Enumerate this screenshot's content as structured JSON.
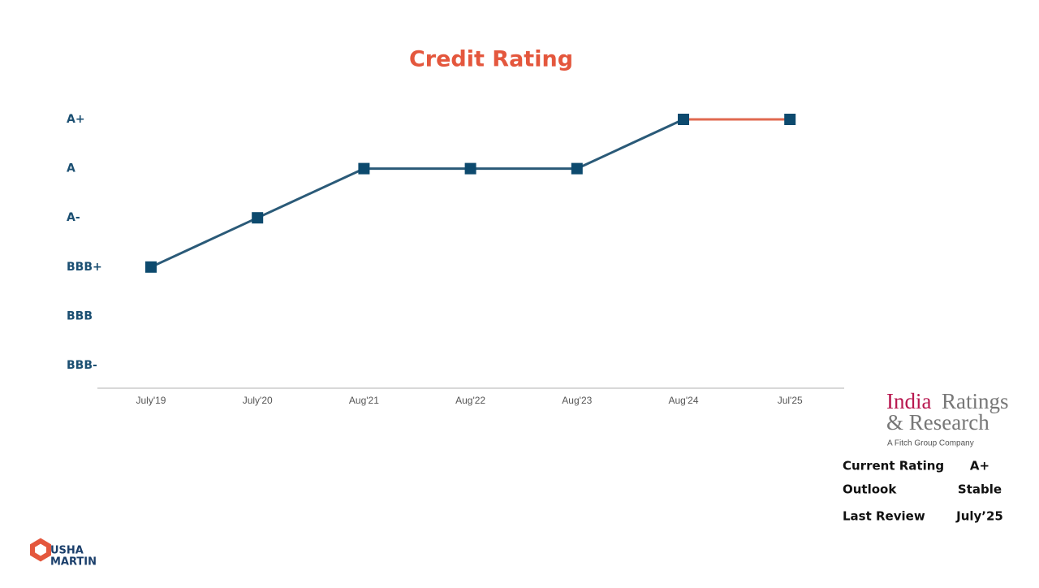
{
  "chart_data": {
    "type": "line",
    "title": "Credit Rating",
    "categories": [
      "July'19",
      "July'20",
      "Aug'21",
      "Aug'22",
      "Aug'23",
      "Aug'24",
      "Jul'25"
    ],
    "y_categories": [
      "BBB-",
      "BBB",
      "BBB+",
      "A-",
      "A",
      "A+"
    ],
    "values": [
      "BBB+",
      "A-",
      "A",
      "A",
      "A",
      "A+",
      "A+"
    ],
    "marker_color": "#0d4a6e",
    "segment_colors": [
      "#2a5a78",
      "#2a5a78",
      "#2a5a78",
      "#2a5a78",
      "#2a5a78",
      "#e0694f"
    ]
  },
  "agency": {
    "name_1": "India",
    "name_2": "Ratings",
    "name_3": "& Research",
    "tagline": "A Fitch Group Company"
  },
  "summary": {
    "rows": [
      [
        "Current Rating",
        "A+"
      ],
      [
        "Outlook",
        "Stable"
      ],
      [
        "Last Review",
        "July’25"
      ]
    ]
  },
  "company": {
    "line_1": "USHA",
    "line_2": "MARTIN"
  }
}
